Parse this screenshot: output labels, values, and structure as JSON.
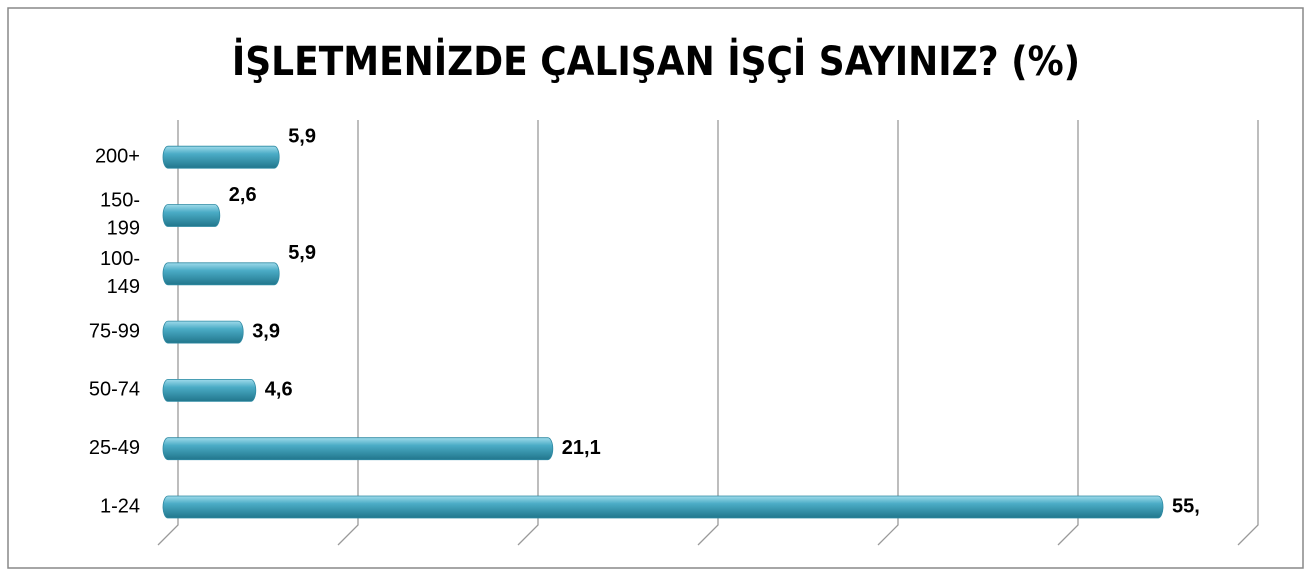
{
  "chart_data": {
    "type": "bar",
    "orientation": "horizontal",
    "title": "İŞLETMENİZDE ÇALIŞAN İŞÇİ SAYINIZ? (%)",
    "categories": [
      "1-24",
      "25-49",
      "50-74",
      "75-99",
      "100-149",
      "150-199",
      "200+"
    ],
    "values": [
      55,
      21.1,
      4.6,
      3.9,
      5.9,
      2.6,
      5.9
    ],
    "value_labels": [
      "55,",
      "21,1",
      "4,6",
      "3,9",
      "5,9",
      "2,6",
      "5,9"
    ],
    "color": "#4bacc6",
    "xlim": [
      0,
      60
    ],
    "xticks": [
      0,
      10,
      20,
      30,
      40,
      50,
      60
    ],
    "grid": true
  }
}
